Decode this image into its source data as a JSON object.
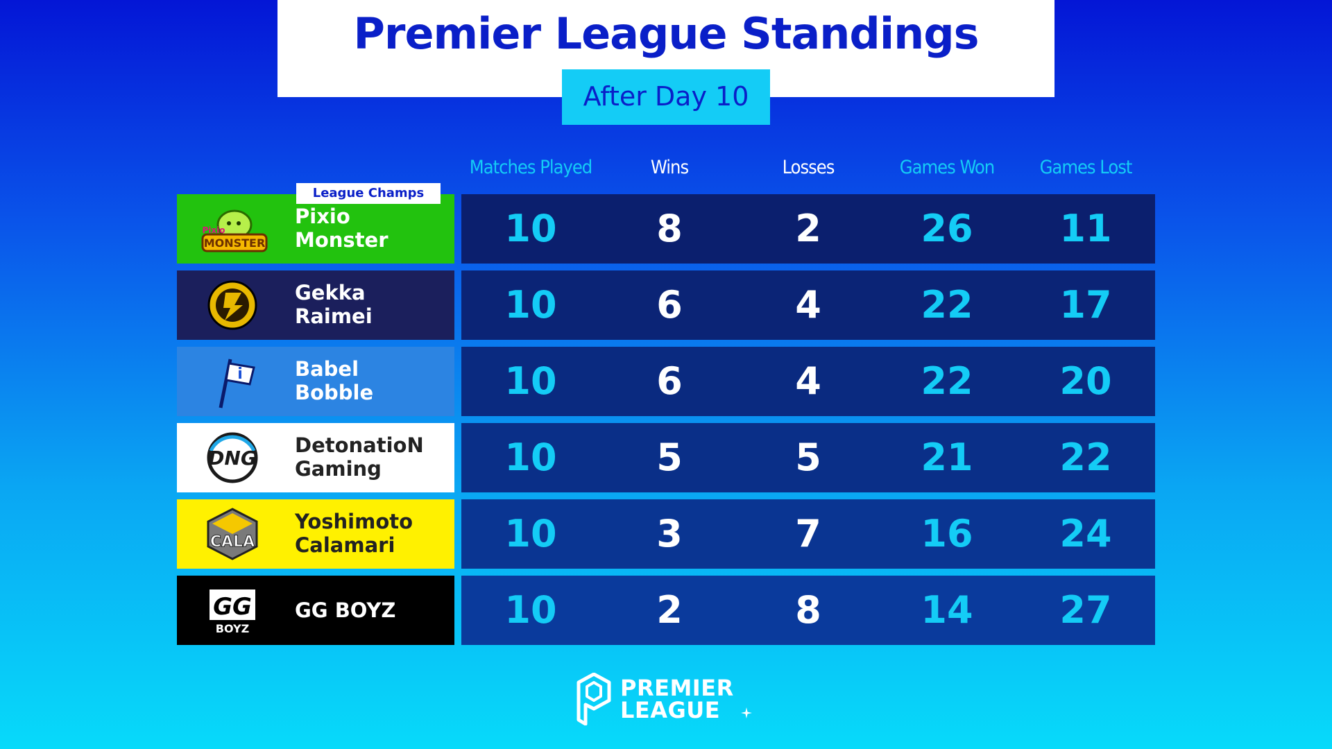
{
  "title": "Premier League Standings",
  "subtitle": "After Day 10",
  "columns": [
    "Matches Played",
    "Wins",
    "Losses",
    "Games Won",
    "Games Lost"
  ],
  "badge": "League Champs",
  "teams": [
    {
      "name_line1": "Pixio",
      "name_line2": "Monster",
      "logo_text": "Pixio",
      "logo_text2": "MONSTER",
      "bg": "#22c20e",
      "text_color": "#ffffff",
      "stats": [
        "10",
        "8",
        "2",
        "26",
        "11"
      ]
    },
    {
      "name_line1": "Gekka",
      "name_line2": "Raimei",
      "logo_text": "",
      "logo_text2": "",
      "bg": "#1b1f5c",
      "text_color": "#ffffff",
      "stats": [
        "10",
        "6",
        "4",
        "22",
        "17"
      ]
    },
    {
      "name_line1": "Babel",
      "name_line2": "Bobble",
      "logo_text": "",
      "logo_text2": "",
      "bg": "#2c84e2",
      "text_color": "#ffffff",
      "stats": [
        "10",
        "6",
        "4",
        "22",
        "20"
      ]
    },
    {
      "name_line1": "DetonatioN",
      "name_line2": "Gaming",
      "logo_text": "DNG",
      "logo_text2": "",
      "bg": "#ffffff",
      "text_color": "#222222",
      "stats": [
        "10",
        "5",
        "5",
        "21",
        "22"
      ]
    },
    {
      "name_line1": "Yoshimoto",
      "name_line2": "Calamari",
      "logo_text": "CALA",
      "logo_text2": "",
      "bg": "#fff100",
      "text_color": "#222222",
      "stats": [
        "10",
        "3",
        "7",
        "16",
        "24"
      ]
    },
    {
      "name_line1": "GG BOYZ",
      "name_line2": "",
      "logo_text": "GG",
      "logo_text2": "BOYZ",
      "bg": "#000000",
      "text_color": "#ffffff",
      "stats": [
        "10",
        "2",
        "8",
        "14",
        "27"
      ]
    }
  ],
  "footer": {
    "line1": "PREMIER",
    "line2": "LEAGUE"
  },
  "colors": {
    "title": "#0a1fc8",
    "subtitle_bg": "#14ccf6",
    "stat_cyan": "#14ccf6",
    "stat_white": "#ffffff",
    "row_bg": "#0a2a86"
  }
}
